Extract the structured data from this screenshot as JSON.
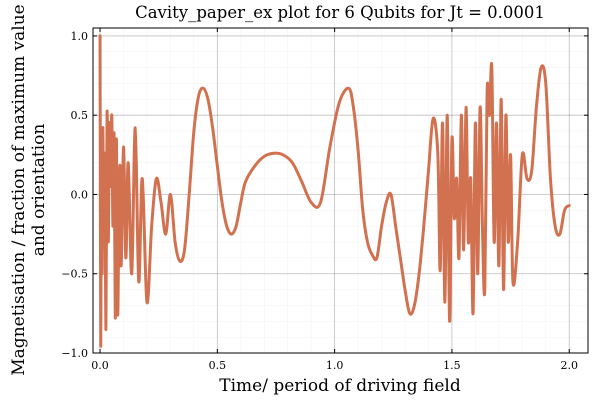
{
  "chart_data": {
    "type": "line",
    "title": "Cavity_paper_ex plot for 6 Qubits for Jt = 0.0001",
    "xlabel": "Time/ period of driving field",
    "ylabel_line1": "Magnetisation / fraction of maximum value",
    "ylabel_line2": "and orientation",
    "xlim": [
      -0.03,
      2.08
    ],
    "ylim": [
      -1.0,
      1.05
    ],
    "xticks": [
      {
        "value": 0.0,
        "label": "0.0"
      },
      {
        "value": 0.5,
        "label": "0.5"
      },
      {
        "value": 1.0,
        "label": "1.0"
      },
      {
        "value": 1.5,
        "label": "1.5"
      },
      {
        "value": 2.0,
        "label": "2.0"
      }
    ],
    "yticks": [
      {
        "value": -1.0,
        "label": "−1.0"
      },
      {
        "value": -0.5,
        "label": "−0.5"
      },
      {
        "value": 0.0,
        "label": "0.0"
      },
      {
        "value": 0.5,
        "label": "0.5"
      },
      {
        "value": 1.0,
        "label": "1.0"
      }
    ],
    "grid": true,
    "legend": "none",
    "series": [
      {
        "color": "#d2714f",
        "x": [
          0.0,
          0.003,
          0.006,
          0.009,
          0.012,
          0.016,
          0.02,
          0.025,
          0.03,
          0.035,
          0.04,
          0.045,
          0.05,
          0.055,
          0.06,
          0.065,
          0.07,
          0.075,
          0.08,
          0.085,
          0.09,
          0.1,
          0.11,
          0.12,
          0.135,
          0.15,
          0.165,
          0.18,
          0.2,
          0.22,
          0.24,
          0.26,
          0.28,
          0.3,
          0.32,
          0.34,
          0.36,
          0.38,
          0.4,
          0.42,
          0.44,
          0.46,
          0.48,
          0.5,
          0.52,
          0.54,
          0.56,
          0.58,
          0.6,
          0.62,
          0.66,
          0.7,
          0.74,
          0.78,
          0.82,
          0.86,
          0.9,
          0.94,
          0.98,
          1.02,
          1.06,
          1.08,
          1.1,
          1.12,
          1.14,
          1.16,
          1.18,
          1.2,
          1.22,
          1.24,
          1.26,
          1.28,
          1.3,
          1.32,
          1.34,
          1.36,
          1.38,
          1.4,
          1.42,
          1.44,
          1.45,
          1.46,
          1.47,
          1.48,
          1.49,
          1.5,
          1.51,
          1.52,
          1.53,
          1.54,
          1.55,
          1.56,
          1.57,
          1.58,
          1.59,
          1.6,
          1.61,
          1.62,
          1.63,
          1.64,
          1.65,
          1.66,
          1.67,
          1.68,
          1.69,
          1.7,
          1.71,
          1.72,
          1.73,
          1.74,
          1.75,
          1.76,
          1.78,
          1.8,
          1.82,
          1.84,
          1.86,
          1.88,
          1.9,
          1.92,
          1.94,
          1.96,
          1.98,
          2.0
        ],
        "y": [
          1.0,
          -0.95,
          0.3,
          -0.5,
          0.42,
          -0.25,
          0.25,
          -0.85,
          0.52,
          -0.3,
          0.45,
          0.05,
          0.5,
          -0.2,
          0.38,
          -0.78,
          0.35,
          -0.75,
          -0.2,
          0.18,
          -0.45,
          0.3,
          -0.4,
          0.2,
          -0.5,
          0.42,
          -0.55,
          0.1,
          -0.68,
          -0.2,
          0.1,
          -0.05,
          -0.25,
          0.0,
          -0.3,
          -0.42,
          -0.35,
          0.0,
          0.4,
          0.62,
          0.67,
          0.6,
          0.42,
          0.18,
          -0.05,
          -0.2,
          -0.25,
          -0.2,
          -0.05,
          0.08,
          0.18,
          0.24,
          0.26,
          0.25,
          0.2,
          0.08,
          -0.05,
          -0.05,
          0.3,
          0.58,
          0.67,
          0.55,
          0.28,
          -0.1,
          -0.3,
          -0.38,
          -0.4,
          -0.2,
          -0.05,
          0.0,
          -0.2,
          -0.4,
          -0.6,
          -0.75,
          -0.7,
          -0.5,
          -0.2,
          0.15,
          0.48,
          0.25,
          -0.48,
          0.45,
          -0.68,
          0.5,
          -0.8,
          0.35,
          -0.15,
          0.1,
          -0.4,
          0.5,
          -0.35,
          0.55,
          -0.3,
          0.1,
          -0.75,
          0.45,
          -0.5,
          0.55,
          -0.2,
          -0.6,
          0.65,
          0.5,
          0.8,
          -0.3,
          0.45,
          -0.45,
          0.6,
          -0.6,
          0.5,
          -0.3,
          0.25,
          -0.55,
          -0.3,
          0.25,
          0.1,
          0.15,
          0.55,
          0.8,
          0.7,
          0.1,
          -0.2,
          -0.25,
          -0.1,
          -0.07
        ]
      }
    ]
  }
}
